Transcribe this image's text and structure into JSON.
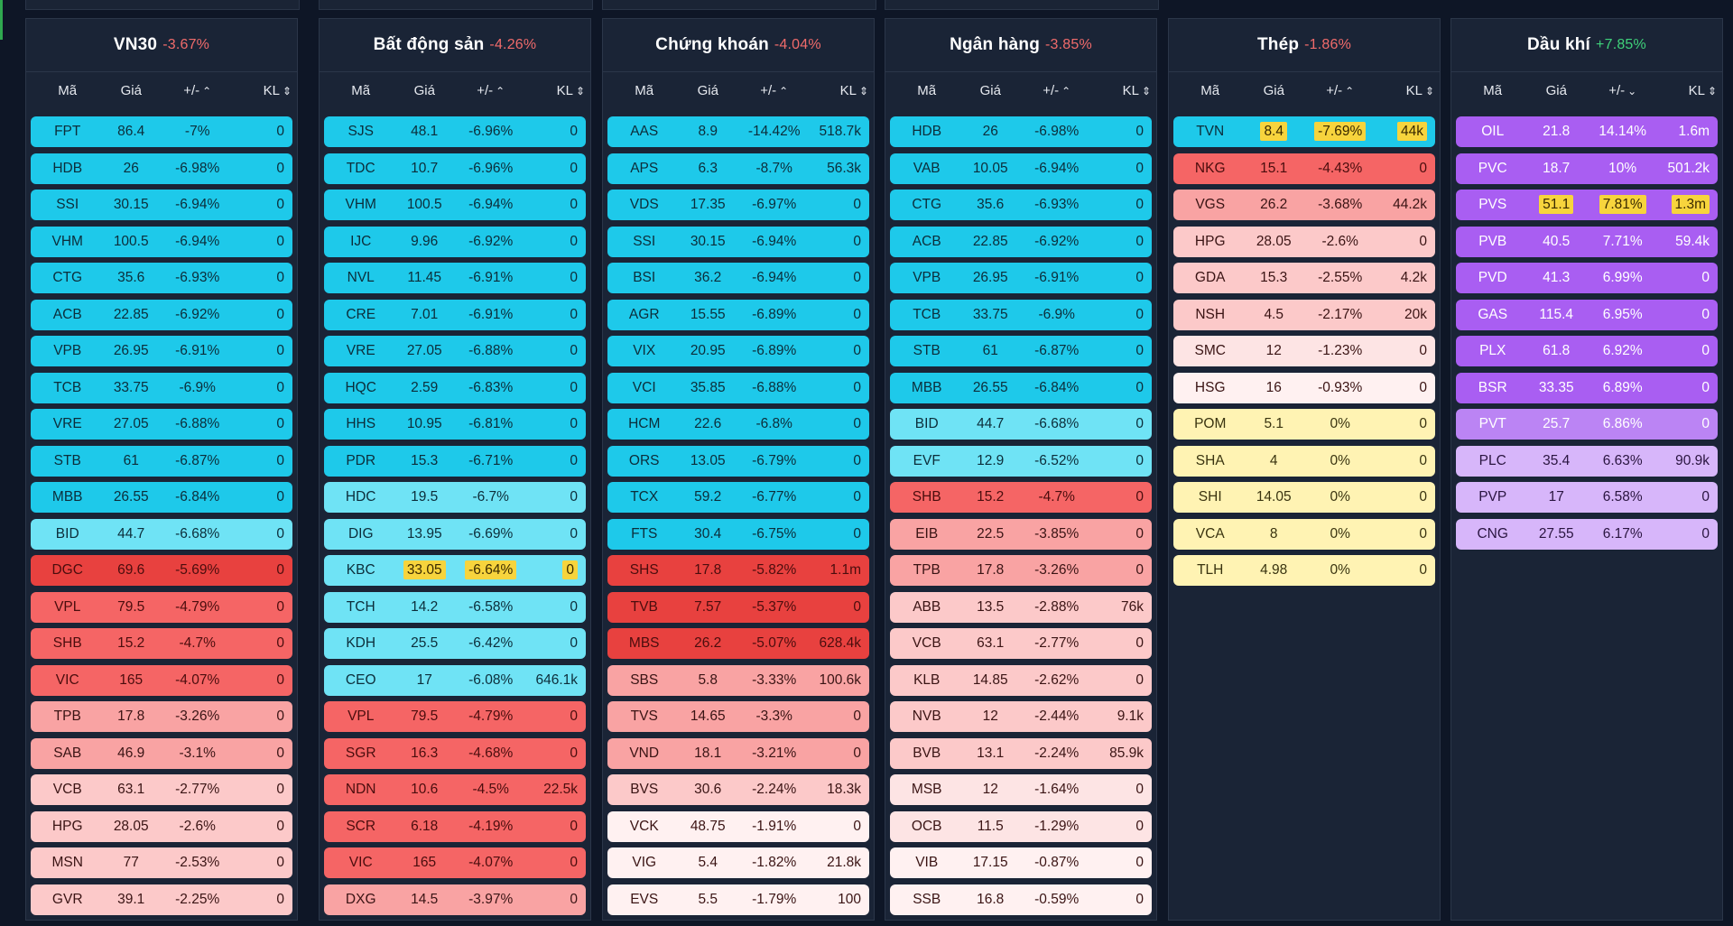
{
  "header": {
    "col_code": "Mã",
    "col_price": "Giá",
    "col_change": "+/-",
    "col_volume": "KL"
  },
  "colors": {
    "cyan": "#1ec9ea",
    "lightcyan": "#6fe3f5",
    "red": "#e8413f",
    "redmid": "#f56565",
    "salmon": "#f9a3a3",
    "pink": "#fcc9c9",
    "lightpink": "#fde4e4",
    "palepink": "#fff1f1",
    "yellow": "#fff3b3",
    "purple": "#a95ef2",
    "purplemid": "#bb84f4",
    "lavender": "#d7b6fa",
    "highlight": "#f7d43d"
  },
  "panels": [
    {
      "name": "VN30",
      "change": "-3.67%",
      "dir": "neg",
      "sort_icon": "chevron-up",
      "rows": [
        [
          "FPT",
          "86.4",
          "-7%",
          "0",
          "cyan"
        ],
        [
          "HDB",
          "26",
          "-6.98%",
          "0",
          "cyan"
        ],
        [
          "SSI",
          "30.15",
          "-6.94%",
          "0",
          "cyan"
        ],
        [
          "VHM",
          "100.5",
          "-6.94%",
          "0",
          "cyan"
        ],
        [
          "CTG",
          "35.6",
          "-6.93%",
          "0",
          "cyan"
        ],
        [
          "ACB",
          "22.85",
          "-6.92%",
          "0",
          "cyan"
        ],
        [
          "VPB",
          "26.95",
          "-6.91%",
          "0",
          "cyan"
        ],
        [
          "TCB",
          "33.75",
          "-6.9%",
          "0",
          "cyan"
        ],
        [
          "VRE",
          "27.05",
          "-6.88%",
          "0",
          "cyan"
        ],
        [
          "STB",
          "61",
          "-6.87%",
          "0",
          "cyan"
        ],
        [
          "MBB",
          "26.55",
          "-6.84%",
          "0",
          "cyan"
        ],
        [
          "BID",
          "44.7",
          "-6.68%",
          "0",
          "lightcyan"
        ],
        [
          "DGC",
          "69.6",
          "-5.69%",
          "0",
          "red"
        ],
        [
          "VPL",
          "79.5",
          "-4.79%",
          "0",
          "redmid"
        ],
        [
          "SHB",
          "15.2",
          "-4.7%",
          "0",
          "redmid"
        ],
        [
          "VIC",
          "165",
          "-4.07%",
          "0",
          "redmid"
        ],
        [
          "TPB",
          "17.8",
          "-3.26%",
          "0",
          "salmon"
        ],
        [
          "SAB",
          "46.9",
          "-3.1%",
          "0",
          "salmon"
        ],
        [
          "VCB",
          "63.1",
          "-2.77%",
          "0",
          "pink"
        ],
        [
          "HPG",
          "28.05",
          "-2.6%",
          "0",
          "pink"
        ],
        [
          "MSN",
          "77",
          "-2.53%",
          "0",
          "pink"
        ],
        [
          "GVR",
          "39.1",
          "-2.25%",
          "0",
          "pink"
        ]
      ]
    },
    {
      "name": "Bất động sản",
      "change": "-4.26%",
      "dir": "neg",
      "sort_icon": "chevron-up",
      "rows": [
        [
          "SJS",
          "48.1",
          "-6.96%",
          "0",
          "cyan"
        ],
        [
          "TDC",
          "10.7",
          "-6.96%",
          "0",
          "cyan"
        ],
        [
          "VHM",
          "100.5",
          "-6.94%",
          "0",
          "cyan"
        ],
        [
          "IJC",
          "9.96",
          "-6.92%",
          "0",
          "cyan"
        ],
        [
          "NVL",
          "11.45",
          "-6.91%",
          "0",
          "cyan"
        ],
        [
          "CRE",
          "7.01",
          "-6.91%",
          "0",
          "cyan"
        ],
        [
          "VRE",
          "27.05",
          "-6.88%",
          "0",
          "cyan"
        ],
        [
          "HQC",
          "2.59",
          "-6.83%",
          "0",
          "cyan"
        ],
        [
          "HHS",
          "10.95",
          "-6.81%",
          "0",
          "cyan"
        ],
        [
          "PDR",
          "15.3",
          "-6.71%",
          "0",
          "cyan"
        ],
        [
          "HDC",
          "19.5",
          "-6.7%",
          "0",
          "lightcyan"
        ],
        [
          "DIG",
          "13.95",
          "-6.69%",
          "0",
          "lightcyan"
        ],
        [
          "KBC",
          "33.05",
          "-6.64%",
          "0",
          "lightcyan",
          "hl"
        ],
        [
          "TCH",
          "14.2",
          "-6.58%",
          "0",
          "lightcyan"
        ],
        [
          "KDH",
          "25.5",
          "-6.42%",
          "0",
          "lightcyan"
        ],
        [
          "CEO",
          "17",
          "-6.08%",
          "646.1k",
          "lightcyan"
        ],
        [
          "VPL",
          "79.5",
          "-4.79%",
          "0",
          "redmid"
        ],
        [
          "SGR",
          "16.3",
          "-4.68%",
          "0",
          "redmid"
        ],
        [
          "NDN",
          "10.6",
          "-4.5%",
          "22.5k",
          "redmid"
        ],
        [
          "SCR",
          "6.18",
          "-4.19%",
          "0",
          "redmid"
        ],
        [
          "VIC",
          "165",
          "-4.07%",
          "0",
          "redmid"
        ],
        [
          "DXG",
          "14.5",
          "-3.97%",
          "0",
          "salmon"
        ]
      ]
    },
    {
      "name": "Chứng khoán",
      "change": "-4.04%",
      "dir": "neg",
      "sort_icon": "chevron-up",
      "rows": [
        [
          "AAS",
          "8.9",
          "-14.42%",
          "518.7k",
          "cyan"
        ],
        [
          "APS",
          "6.3",
          "-8.7%",
          "56.3k",
          "cyan"
        ],
        [
          "VDS",
          "17.35",
          "-6.97%",
          "0",
          "cyan"
        ],
        [
          "SSI",
          "30.15",
          "-6.94%",
          "0",
          "cyan"
        ],
        [
          "BSI",
          "36.2",
          "-6.94%",
          "0",
          "cyan"
        ],
        [
          "AGR",
          "15.55",
          "-6.89%",
          "0",
          "cyan"
        ],
        [
          "VIX",
          "20.95",
          "-6.89%",
          "0",
          "cyan"
        ],
        [
          "VCI",
          "35.85",
          "-6.88%",
          "0",
          "cyan"
        ],
        [
          "HCM",
          "22.6",
          "-6.8%",
          "0",
          "cyan"
        ],
        [
          "ORS",
          "13.05",
          "-6.79%",
          "0",
          "cyan"
        ],
        [
          "TCX",
          "59.2",
          "-6.77%",
          "0",
          "cyan"
        ],
        [
          "FTS",
          "30.4",
          "-6.75%",
          "0",
          "cyan"
        ],
        [
          "SHS",
          "17.8",
          "-5.82%",
          "1.1m",
          "red"
        ],
        [
          "TVB",
          "7.57",
          "-5.37%",
          "0",
          "red"
        ],
        [
          "MBS",
          "26.2",
          "-5.07%",
          "628.4k",
          "red"
        ],
        [
          "SBS",
          "5.8",
          "-3.33%",
          "100.6k",
          "salmon"
        ],
        [
          "TVS",
          "14.65",
          "-3.3%",
          "0",
          "salmon"
        ],
        [
          "VND",
          "18.1",
          "-3.21%",
          "0",
          "salmon"
        ],
        [
          "BVS",
          "30.6",
          "-2.24%",
          "18.3k",
          "pink"
        ],
        [
          "VCK",
          "48.75",
          "-1.91%",
          "0",
          "palepink"
        ],
        [
          "VIG",
          "5.4",
          "-1.82%",
          "21.8k",
          "palepink"
        ],
        [
          "EVS",
          "5.5",
          "-1.79%",
          "100",
          "palepink"
        ]
      ]
    },
    {
      "name": "Ngân hàng",
      "change": "-3.85%",
      "dir": "neg",
      "sort_icon": "chevron-up",
      "rows": [
        [
          "HDB",
          "26",
          "-6.98%",
          "0",
          "cyan"
        ],
        [
          "VAB",
          "10.05",
          "-6.94%",
          "0",
          "cyan"
        ],
        [
          "CTG",
          "35.6",
          "-6.93%",
          "0",
          "cyan"
        ],
        [
          "ACB",
          "22.85",
          "-6.92%",
          "0",
          "cyan"
        ],
        [
          "VPB",
          "26.95",
          "-6.91%",
          "0",
          "cyan"
        ],
        [
          "TCB",
          "33.75",
          "-6.9%",
          "0",
          "cyan"
        ],
        [
          "STB",
          "61",
          "-6.87%",
          "0",
          "cyan"
        ],
        [
          "MBB",
          "26.55",
          "-6.84%",
          "0",
          "cyan"
        ],
        [
          "BID",
          "44.7",
          "-6.68%",
          "0",
          "lightcyan"
        ],
        [
          "EVF",
          "12.9",
          "-6.52%",
          "0",
          "lightcyan"
        ],
        [
          "SHB",
          "15.2",
          "-4.7%",
          "0",
          "redmid"
        ],
        [
          "EIB",
          "22.5",
          "-3.85%",
          "0",
          "salmon"
        ],
        [
          "TPB",
          "17.8",
          "-3.26%",
          "0",
          "salmon"
        ],
        [
          "ABB",
          "13.5",
          "-2.88%",
          "76k",
          "pink"
        ],
        [
          "VCB",
          "63.1",
          "-2.77%",
          "0",
          "pink"
        ],
        [
          "KLB",
          "14.85",
          "-2.62%",
          "0",
          "pink"
        ],
        [
          "NVB",
          "12",
          "-2.44%",
          "9.1k",
          "pink"
        ],
        [
          "BVB",
          "13.1",
          "-2.24%",
          "85.9k",
          "pink"
        ],
        [
          "MSB",
          "12",
          "-1.64%",
          "0",
          "lightpink"
        ],
        [
          "OCB",
          "11.5",
          "-1.29%",
          "0",
          "lightpink"
        ],
        [
          "VIB",
          "17.15",
          "-0.87%",
          "0",
          "palepink"
        ],
        [
          "SSB",
          "16.8",
          "-0.59%",
          "0",
          "palepink"
        ]
      ]
    },
    {
      "name": "Thép",
      "change": "-1.86%",
      "dir": "neg",
      "sort_icon": "chevron-up",
      "rows": [
        [
          "TVN",
          "8.4",
          "-7.69%",
          "44k",
          "cyan",
          "hl"
        ],
        [
          "NKG",
          "15.1",
          "-4.43%",
          "0",
          "redmid"
        ],
        [
          "VGS",
          "26.2",
          "-3.68%",
          "44.2k",
          "salmon"
        ],
        [
          "HPG",
          "28.05",
          "-2.6%",
          "0",
          "pink"
        ],
        [
          "GDA",
          "15.3",
          "-2.55%",
          "4.2k",
          "pink"
        ],
        [
          "NSH",
          "4.5",
          "-2.17%",
          "20k",
          "pink"
        ],
        [
          "SMC",
          "12",
          "-1.23%",
          "0",
          "lightpink"
        ],
        [
          "HSG",
          "16",
          "-0.93%",
          "0",
          "palepink"
        ],
        [
          "POM",
          "5.1",
          "0%",
          "0",
          "yellow"
        ],
        [
          "SHA",
          "4",
          "0%",
          "0",
          "yellow"
        ],
        [
          "SHI",
          "14.05",
          "0%",
          "0",
          "yellow"
        ],
        [
          "VCA",
          "8",
          "0%",
          "0",
          "yellow"
        ],
        [
          "TLH",
          "4.98",
          "0%",
          "0",
          "yellow"
        ]
      ]
    },
    {
      "name": "Dầu khí",
      "change": "+7.85%",
      "dir": "pos",
      "sort_icon": "chevron-down",
      "rows": [
        [
          "OIL",
          "21.8",
          "14.14%",
          "1.6m",
          "purple"
        ],
        [
          "PVC",
          "18.7",
          "10%",
          "501.2k",
          "purple"
        ],
        [
          "PVS",
          "51.1",
          "7.81%",
          "1.3m",
          "purple",
          "hl"
        ],
        [
          "PVB",
          "40.5",
          "7.71%",
          "59.4k",
          "purple"
        ],
        [
          "PVD",
          "41.3",
          "6.99%",
          "0",
          "purple"
        ],
        [
          "GAS",
          "115.4",
          "6.95%",
          "0",
          "purple"
        ],
        [
          "PLX",
          "61.8",
          "6.92%",
          "0",
          "purple"
        ],
        [
          "BSR",
          "33.35",
          "6.89%",
          "0",
          "purple"
        ],
        [
          "PVT",
          "25.7",
          "6.86%",
          "0",
          "purplemid"
        ],
        [
          "PLC",
          "35.4",
          "6.63%",
          "90.9k",
          "lavender"
        ],
        [
          "PVP",
          "17",
          "6.58%",
          "0",
          "lavender"
        ],
        [
          "CNG",
          "27.55",
          "6.17%",
          "0",
          "lavender"
        ]
      ]
    }
  ]
}
